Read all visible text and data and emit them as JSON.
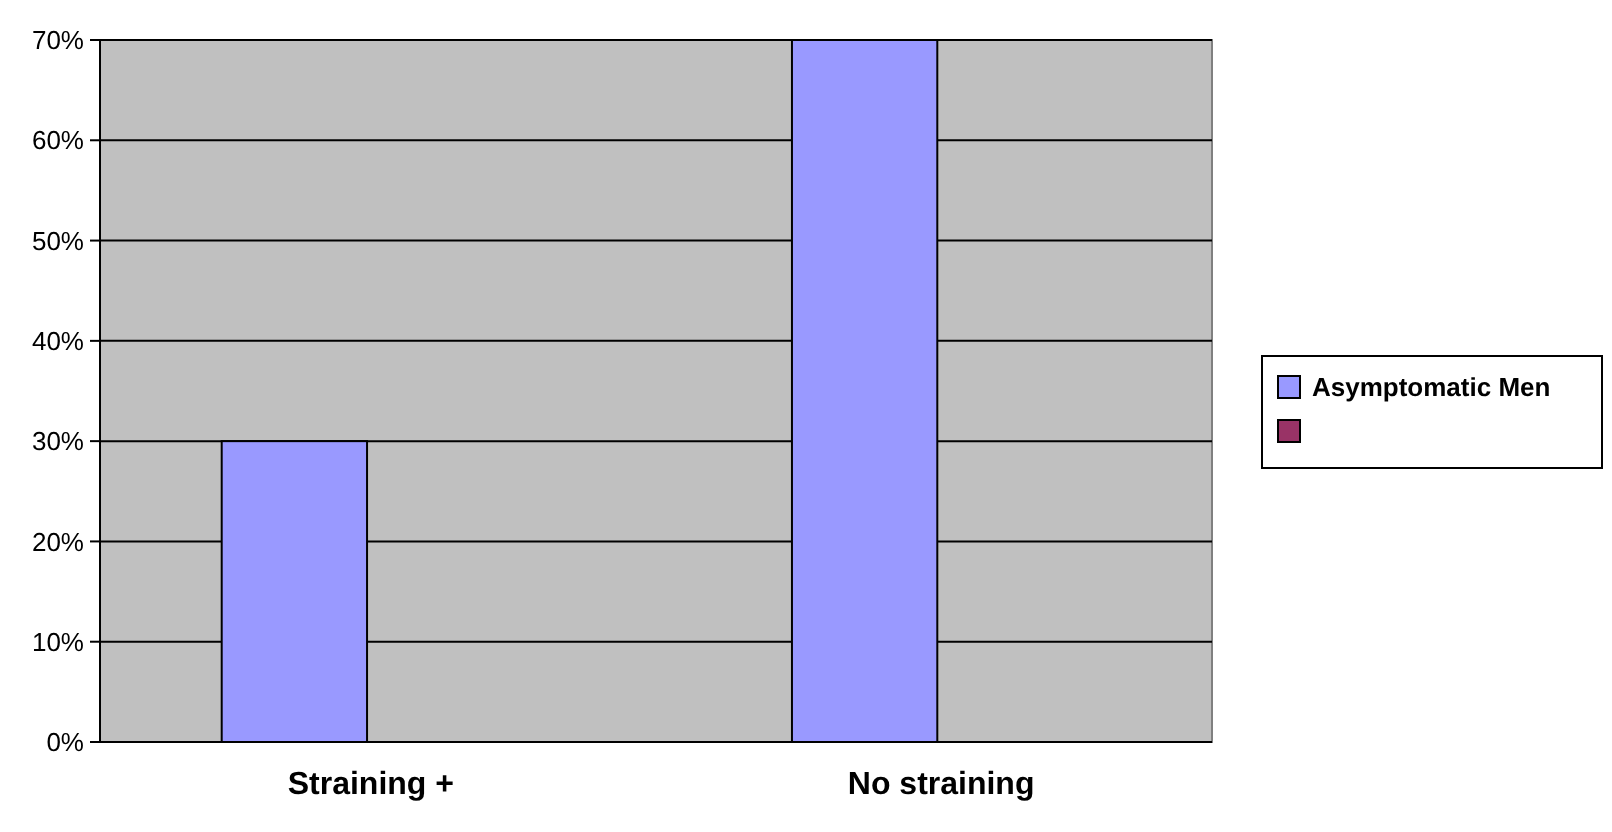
{
  "chart_data": {
    "type": "bar",
    "categories": [
      "Straining +",
      "No straining"
    ],
    "series": [
      {
        "name": "Asymptomatic Men",
        "color": "#9999ff",
        "values": [
          30,
          70
        ]
      },
      {
        "color": "#993366",
        "values": [
          null,
          null
        ]
      }
    ],
    "ylim": [
      0,
      70
    ],
    "yticks": [
      {
        "value": 0,
        "label": "0%"
      },
      {
        "value": 10,
        "label": "10%"
      },
      {
        "value": 20,
        "label": "20%"
      },
      {
        "value": 30,
        "label": "30%"
      },
      {
        "value": 40,
        "label": "40%"
      },
      {
        "value": 50,
        "label": "50%"
      },
      {
        "value": 60,
        "label": "60%"
      },
      {
        "value": 70,
        "label": "70%"
      }
    ],
    "grid": "y",
    "legend": "right"
  }
}
